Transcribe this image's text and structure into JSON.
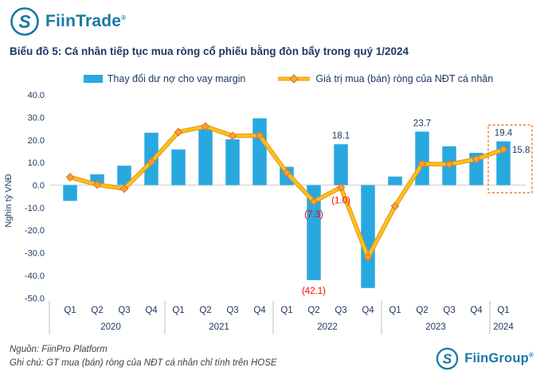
{
  "header": {
    "brand": "FiinTrade",
    "registered_mark": "®",
    "logo_letter": "S"
  },
  "title": "Biểu đồ 5: Cá nhân tiếp tục mua ròng cổ phiếu bằng đòn bẩy trong quý 1/2024",
  "legend": {
    "bar_label": "Thay đổi dư nợ cho vay margin",
    "line_label": "Giá trị mua (bán) ròng của NĐT cá nhân"
  },
  "chart_data": {
    "type": "bar+line",
    "title": "Biểu đồ 5: Cá nhân tiếp tục mua ròng cổ phiếu bằng đòn bẩy trong quý 1/2024",
    "ylabel": "Nghìn tỷ VNĐ",
    "ylim": [
      -50,
      40
    ],
    "yticks": [
      40,
      30,
      20,
      10,
      0,
      -10,
      -20,
      -30,
      -40,
      -50
    ],
    "grid": "zero-line-only",
    "legend_position": "top",
    "categories": [
      "Q1",
      "Q2",
      "Q3",
      "Q4",
      "Q1",
      "Q2",
      "Q3",
      "Q4",
      "Q1",
      "Q2",
      "Q3",
      "Q4",
      "Q1",
      "Q2",
      "Q3",
      "Q4",
      "Q1"
    ],
    "year_groups": [
      {
        "label": "2020",
        "from": 0,
        "to": 3
      },
      {
        "label": "2021",
        "from": 4,
        "to": 7
      },
      {
        "label": "2022",
        "from": 8,
        "to": 11
      },
      {
        "label": "2023",
        "from": 12,
        "to": 15
      },
      {
        "label": "2024",
        "from": 16,
        "to": 16
      }
    ],
    "series": [
      {
        "name": "Thay đổi dư nợ cho vay margin",
        "type": "bar",
        "color": "#29A8E0",
        "values": [
          -7.0,
          4.8,
          8.6,
          23.2,
          15.8,
          25.2,
          20.3,
          29.6,
          8.1,
          -42.1,
          18.1,
          -45.6,
          3.8,
          23.7,
          17.2,
          14.3,
          19.4
        ]
      },
      {
        "name": "Giá trị mua (bán) ròng của NĐT cá nhân",
        "type": "line",
        "color": "#FFC412",
        "values": [
          3.5,
          0.2,
          -1.6,
          10.3,
          23.5,
          26.0,
          21.8,
          22.0,
          5.5,
          -7.3,
          -1.0,
          -32.0,
          -9.3,
          9.4,
          9.2,
          11.5,
          15.8
        ]
      }
    ],
    "point_labels": [
      {
        "series": "bar",
        "index": 9,
        "text": "(42.1)",
        "color": "#FF0000",
        "placement": "below-bar"
      },
      {
        "series": "bar",
        "index": 10,
        "text": "18.1",
        "color": "#1F3864",
        "placement": "above-bar"
      },
      {
        "series": "bar",
        "index": 13,
        "text": "23.7",
        "color": "#1F3864",
        "placement": "above-bar"
      },
      {
        "series": "bar",
        "index": 16,
        "text": "19.4",
        "color": "#1F3864",
        "placement": "above-bar"
      },
      {
        "series": "line",
        "index": 9,
        "text": "(7.3)",
        "color": "#FF0000",
        "placement": "below-point"
      },
      {
        "series": "line",
        "index": 10,
        "text": "(1.0)",
        "color": "#FF0000",
        "placement": "below-point"
      },
      {
        "series": "line",
        "index": 16,
        "text": "15.8",
        "color": "#1F3864",
        "placement": "right-point"
      }
    ],
    "annotations": [
      {
        "type": "highlight-box",
        "index": 16,
        "label": "Q1 2024",
        "color": "#ED7D31"
      }
    ]
  },
  "colors": {
    "bar": "#29A8E0",
    "line_core": "#FFC412",
    "line_edge": "#E89B29",
    "marker_fill": "#F9A13C",
    "marker_stroke": "#DD7E1A",
    "axis_text": "#1F3864",
    "label_red": "#FF0000",
    "zero_line": "#D9D9D9",
    "separator": "#BFBFBF",
    "highlight_box": "#ED7D31",
    "brand": "#1878A5"
  },
  "footer": {
    "source": "Nguồn: FiinPro Platform",
    "note": "Ghi chú: GT mua (bán) ròng của NĐT cá nhân chỉ tính trên HOSE",
    "brand": "FiinGroup",
    "registered_mark": "®"
  }
}
